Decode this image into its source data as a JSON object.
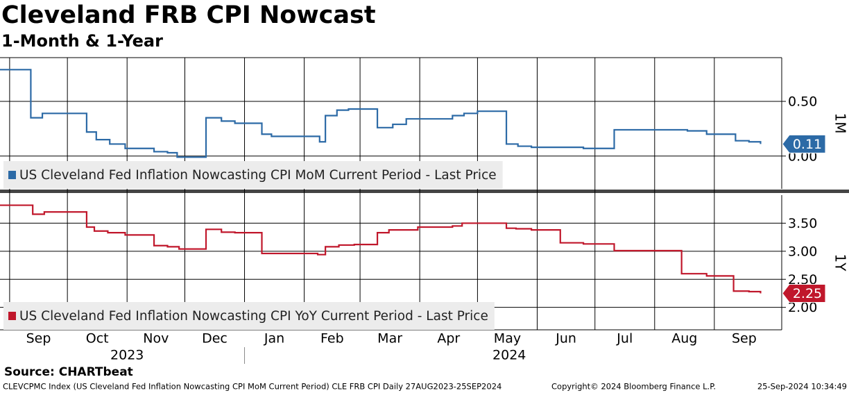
{
  "title": "Cleveland FRB CPI Nowcast",
  "subtitle": "1-Month & 1-Year",
  "source": "Source: CHARTbeat",
  "footer": {
    "left": "CLEVCPMC Index (US Cleveland Fed Inflation Nowcasting CPI MoM Current Period) CLE FRB CPI  Daily 27AUG2023-25SEP2024",
    "center": "Copyright© 2024 Bloomberg Finance L.P.",
    "right": "25-Sep-2024 10:34:49"
  },
  "chart_data": [
    {
      "type": "line",
      "step": "post",
      "panel_label": "1M",
      "grid": true,
      "xlim": [
        "2023-08-27",
        "2024-10-06"
      ],
      "ylim": [
        -0.3,
        0.9
      ],
      "yticks": [
        {
          "value": 0,
          "label": "0.00"
        },
        {
          "value": 0.5,
          "label": "0.50"
        }
      ],
      "x": [
        "2023-08-27",
        "2023-09-12",
        "2023-09-18",
        "2023-10-11",
        "2023-10-16",
        "2023-10-23",
        "2023-10-31",
        "2023-11-15",
        "2023-11-22",
        "2023-11-27",
        "2023-12-12",
        "2023-12-20",
        "2023-12-27",
        "2024-01-10",
        "2024-01-15",
        "2024-02-09",
        "2024-02-12",
        "2024-02-18",
        "2024-02-24",
        "2024-03-10",
        "2024-03-18",
        "2024-03-25",
        "2024-04-18",
        "2024-04-24",
        "2024-05-01",
        "2024-05-16",
        "2024-05-22",
        "2024-05-29",
        "2024-06-25",
        "2024-07-11",
        "2024-08-18",
        "2024-08-28",
        "2024-09-12",
        "2024-09-19",
        "2024-09-25"
      ],
      "series": [
        {
          "name": "US Cleveland Fed Inflation Nowcasting CPI MoM Current Period - Last Price",
          "color": "#2c6aa6",
          "values": [
            0.79,
            0.35,
            0.39,
            0.22,
            0.15,
            0.11,
            0.07,
            0.04,
            0.03,
            -0.01,
            0.35,
            0.32,
            0.3,
            0.2,
            0.18,
            0.13,
            0.37,
            0.42,
            0.43,
            0.26,
            0.29,
            0.34,
            0.37,
            0.39,
            0.41,
            0.11,
            0.09,
            0.08,
            0.07,
            0.24,
            0.23,
            0.2,
            0.14,
            0.13,
            0.11
          ]
        }
      ]
    },
    {
      "type": "line",
      "step": "post",
      "panel_label": "1Y",
      "grid": true,
      "xlim": [
        "2023-08-27",
        "2024-10-06"
      ],
      "ylim": [
        1.6,
        4.0
      ],
      "yticks": [
        {
          "value": 2,
          "label": "2.00"
        },
        {
          "value": 2.5,
          "label": "2.50"
        },
        {
          "value": 3,
          "label": "3.00"
        },
        {
          "value": 3.5,
          "label": "3.50"
        }
      ],
      "xticks": [
        {
          "value": "2023-09-01",
          "label": "Sep"
        },
        {
          "value": "2023-10-01",
          "label": "Oct"
        },
        {
          "value": "2023-11-01",
          "label": "Nov"
        },
        {
          "value": "2023-12-01",
          "label": "Dec"
        },
        {
          "value": "2024-01-01",
          "label": "Jan"
        },
        {
          "value": "2024-02-01",
          "label": "Feb"
        },
        {
          "value": "2024-03-01",
          "label": "Mar"
        },
        {
          "value": "2024-04-01",
          "label": "Apr"
        },
        {
          "value": "2024-05-01",
          "label": "May"
        },
        {
          "value": "2024-06-01",
          "label": "Jun"
        },
        {
          "value": "2024-07-01",
          "label": "Jul"
        },
        {
          "value": "2024-08-01",
          "label": "Aug"
        },
        {
          "value": "2024-09-01",
          "label": "Sep"
        }
      ],
      "years": [
        "2023",
        "2024"
      ],
      "x": [
        "2023-08-27",
        "2023-09-13",
        "2023-09-19",
        "2023-10-11",
        "2023-10-15",
        "2023-10-22",
        "2023-10-31",
        "2023-11-15",
        "2023-11-22",
        "2023-11-28",
        "2023-12-12",
        "2023-12-20",
        "2023-12-27",
        "2024-01-10",
        "2024-02-08",
        "2024-02-12",
        "2024-02-19",
        "2024-02-27",
        "2024-03-10",
        "2024-03-16",
        "2024-03-31",
        "2024-04-18",
        "2024-04-23",
        "2024-05-16",
        "2024-05-21",
        "2024-05-29",
        "2024-06-13",
        "2024-06-25",
        "2024-07-11",
        "2024-08-15",
        "2024-08-28",
        "2024-09-11",
        "2024-09-19",
        "2024-09-25"
      ],
      "series": [
        {
          "name": "US Cleveland Fed Inflation Nowcasting CPI YoY Current Period - Last Price",
          "color": "#c0172b",
          "values": [
            3.82,
            3.66,
            3.7,
            3.43,
            3.36,
            3.33,
            3.29,
            3.1,
            3.08,
            3.04,
            3.39,
            3.34,
            3.33,
            2.96,
            2.94,
            3.08,
            3.11,
            3.12,
            3.33,
            3.38,
            3.43,
            3.45,
            3.5,
            3.41,
            3.4,
            3.38,
            3.15,
            3.13,
            3.01,
            2.6,
            2.56,
            2.29,
            2.28,
            2.25
          ]
        }
      ]
    }
  ]
}
